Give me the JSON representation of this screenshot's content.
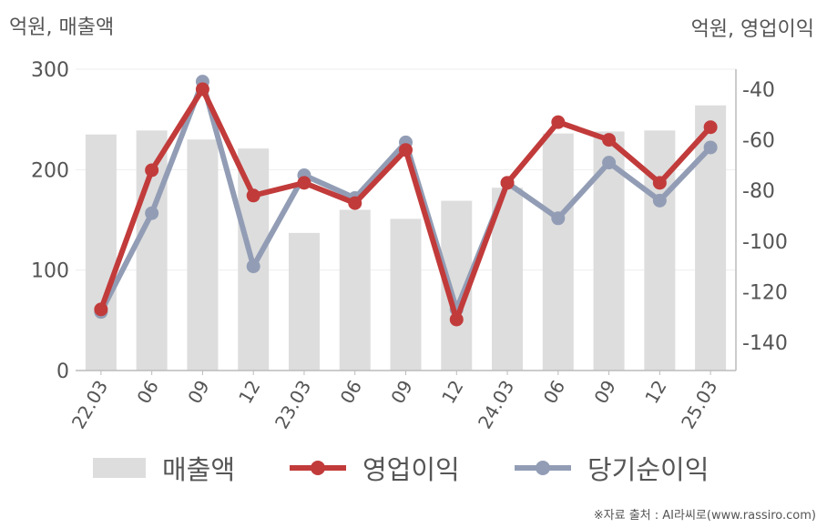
{
  "units": {
    "left": "억원, 매출액",
    "right": "억원, 영업이익"
  },
  "source": "※자료 출처 : AI라씨로(www.rassiro.com)",
  "colors": {
    "bar": "#dddddd",
    "op": "#c23b3b",
    "net": "#929db5",
    "axis": "#bbbbbb",
    "grid": "#eeeeee",
    "text": "#555555"
  },
  "chart_data": {
    "type": "bar",
    "categories": [
      "22.03",
      "06",
      "09",
      "12",
      "23.03",
      "06",
      "09",
      "12",
      "24.03",
      "06",
      "09",
      "12",
      "25.03"
    ],
    "series": [
      {
        "name": "매출액",
        "type": "bar",
        "axis": "left",
        "values": [
          235,
          239,
          230,
          221,
          137,
          160,
          151,
          169,
          182,
          236,
          238,
          239,
          264
        ]
      },
      {
        "name": "영업이익",
        "type": "line",
        "axis": "right",
        "values": [
          -127,
          -72,
          -40,
          -82,
          -77,
          -85,
          -64,
          -131,
          -77,
          -53,
          -60,
          -77,
          -55
        ]
      },
      {
        "name": "당기순이익",
        "type": "line",
        "axis": "right",
        "values": [
          -128,
          -89,
          -37,
          -110,
          -74,
          -83,
          -61,
          -127,
          -77,
          -91,
          -69,
          -84,
          -63
        ]
      }
    ],
    "y_left": {
      "ticks": [
        0,
        100,
        200,
        300
      ],
      "ylim": [
        0,
        300
      ]
    },
    "y_right": {
      "ticks": [
        -40,
        -60,
        -80,
        -100,
        -120,
        -140
      ],
      "ylim": [
        -150,
        -30
      ]
    },
    "legend": [
      "매출액",
      "영업이익",
      "당기순이익"
    ],
    "legend_position": "bottom",
    "grid": true
  }
}
